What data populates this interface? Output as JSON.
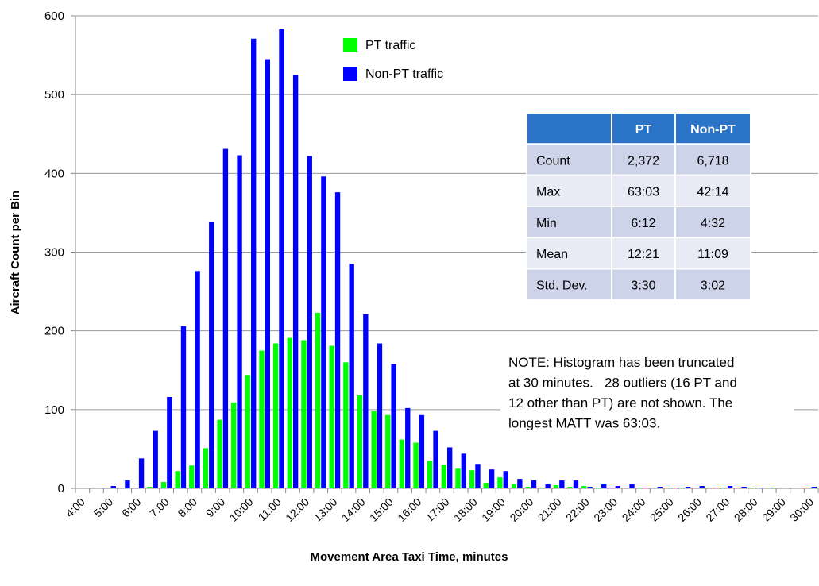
{
  "chart_data": {
    "type": "bar",
    "x_label": "Movement Area Taxi Time, minutes",
    "y_label": "Aircraft Count per Bin",
    "categories": [
      "4:00",
      null,
      "5:00",
      null,
      "6:00",
      null,
      "7:00",
      null,
      "8:00",
      null,
      "9:00",
      null,
      "10:00",
      null,
      "11:00",
      null,
      "12:00",
      null,
      "13:00",
      null,
      "14:00",
      null,
      "15:00",
      null,
      "16:00",
      null,
      "17:00",
      null,
      "18:00",
      null,
      "19:00",
      null,
      "20:00",
      null,
      "21:00",
      null,
      "22:00",
      null,
      "23:00",
      null,
      "24:00",
      null,
      "25:00",
      null,
      "26:00",
      null,
      "27:00",
      null,
      "28:00",
      null,
      "29:00",
      null,
      "30:00"
    ],
    "series": [
      {
        "name": "PT traffic",
        "color": "#00ff00",
        "values": [
          0,
          0,
          0,
          0,
          0,
          2,
          8,
          22,
          29,
          51,
          87,
          109,
          144,
          175,
          184,
          191,
          188,
          223,
          181,
          160,
          118,
          98,
          93,
          62,
          58,
          35,
          30,
          25,
          23,
          7,
          14,
          5,
          2,
          1,
          4,
          2,
          3,
          1,
          1,
          1,
          1,
          0,
          1,
          1,
          1,
          0,
          1,
          1,
          0,
          0,
          0,
          0,
          1
        ]
      },
      {
        "name": "Non-PT traffic",
        "color": "#0000ff",
        "values": [
          0,
          0,
          3,
          10,
          38,
          73,
          116,
          206,
          276,
          338,
          431,
          423,
          571,
          545,
          583,
          525,
          422,
          396,
          376,
          285,
          221,
          184,
          158,
          102,
          93,
          73,
          52,
          44,
          31,
          24,
          22,
          12,
          10,
          5,
          10,
          10,
          2,
          5,
          3,
          5,
          0,
          2,
          1,
          2,
          3,
          1,
          3,
          2,
          1,
          1,
          0,
          0,
          2
        ]
      }
    ],
    "ylim": [
      0,
      600
    ],
    "yticks": [
      0,
      100,
      200,
      300,
      400,
      500,
      600
    ],
    "grid": true,
    "legend": "top",
    "table": {
      "columns": [
        "PT",
        "Non-PT"
      ],
      "rows": [
        {
          "label": "Count",
          "cells": [
            "2,372",
            "6,718"
          ]
        },
        {
          "label": "Max",
          "cells": [
            "63:03",
            "42:14"
          ]
        },
        {
          "label": "Min",
          "cells": [
            "6:12",
            "4:32"
          ]
        },
        {
          "label": "Mean",
          "cells": [
            "12:21",
            "11:09"
          ]
        },
        {
          "label": "Std. Dev.",
          "cells": [
            "3:30",
            "3:02"
          ]
        }
      ]
    },
    "annotation": [
      "NOTE: Histogram has been truncated",
      "at 30 minutes.   28 outliers (16 PT and",
      "12 other than PT) are not shown. The",
      "longest MATT was 63:03."
    ]
  }
}
